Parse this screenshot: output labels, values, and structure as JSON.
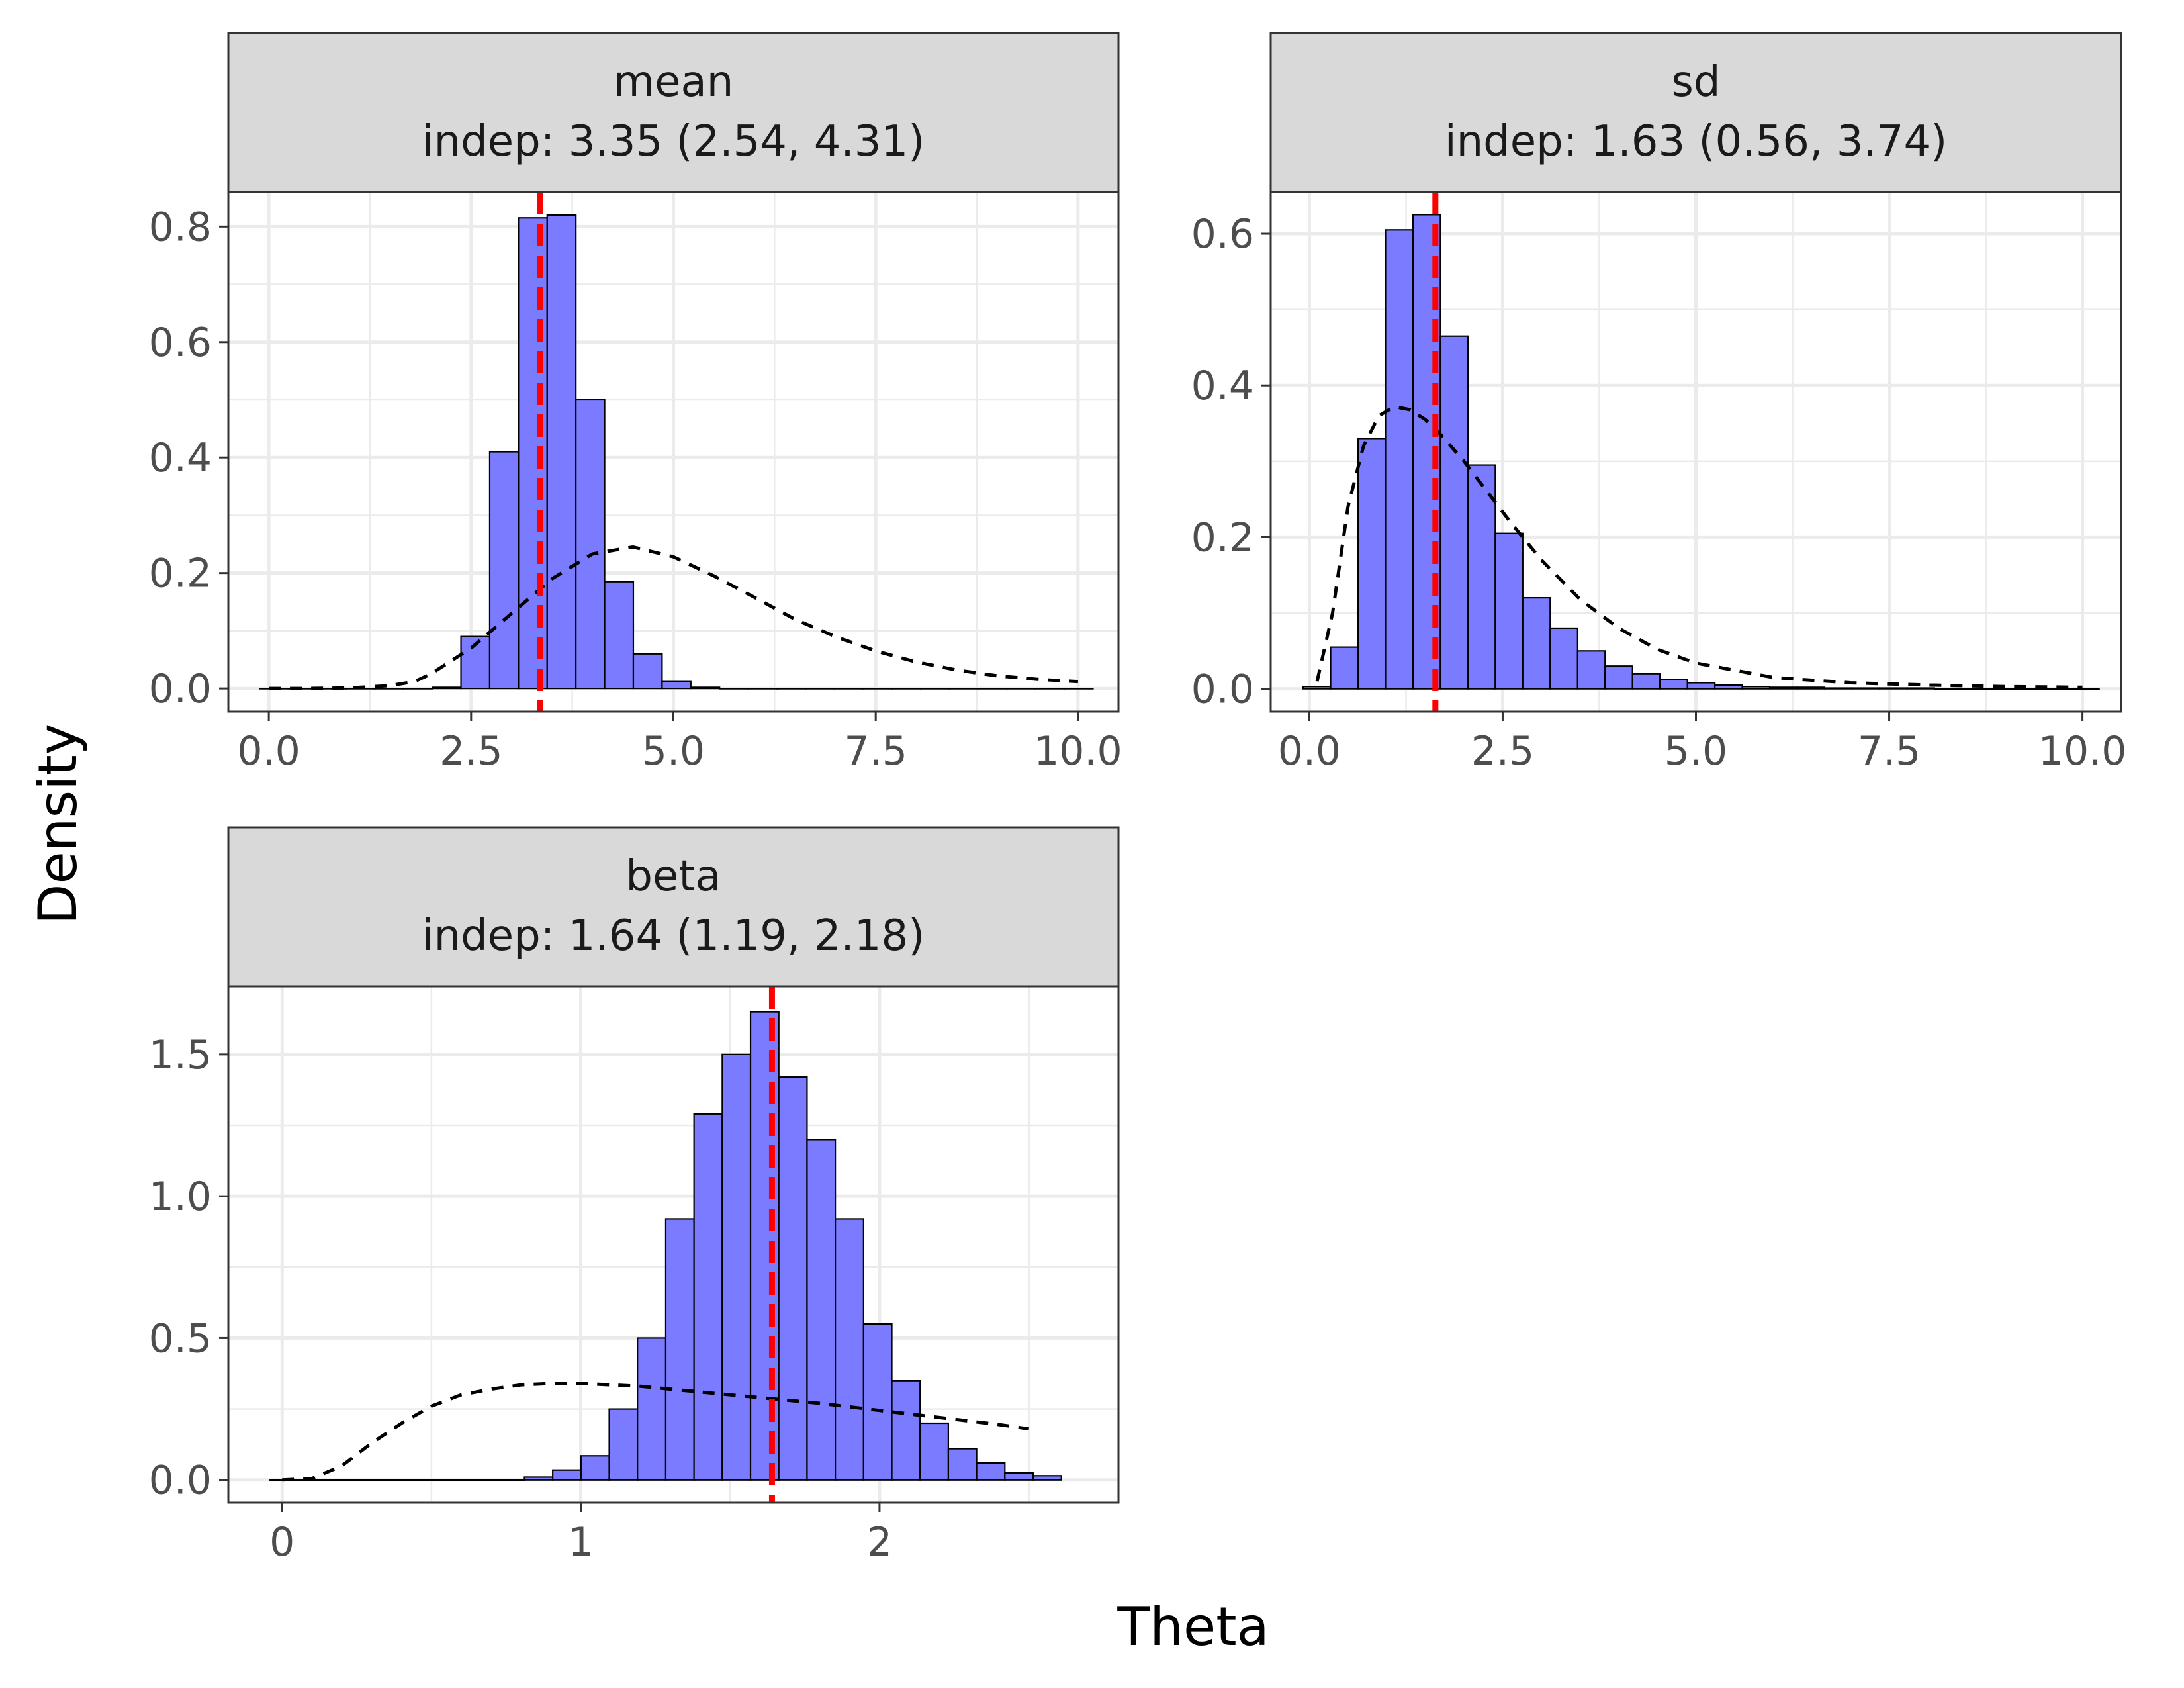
{
  "figure": {
    "xlabel": "Theta",
    "ylabel": "Density"
  },
  "style": {
    "bar_fill": "#7B7BFF",
    "bar_stroke": "#000000",
    "vline_color": "#FF0000",
    "strip_fill": "#D9D9D9",
    "grid_color": "#EBEBEB",
    "panel_border": "#333333",
    "tick_text_color": "#4D4D4D"
  },
  "chart_data": [
    {
      "type": "bar",
      "panel": "mean",
      "strip_title": "mean",
      "strip_subtitle": "indep: 3.35 (2.54, 4.31)",
      "xlim": [
        -0.5,
        10.5
      ],
      "ylim": [
        -0.04,
        0.86
      ],
      "x_ticks": [
        0,
        2.5,
        5,
        7.5,
        10
      ],
      "x_tick_labels": [
        "0.0",
        "2.5",
        "5.0",
        "7.5",
        "10.0"
      ],
      "y_ticks": [
        0,
        0.2,
        0.4,
        0.6,
        0.8
      ],
      "y_tick_labels": [
        "0.0",
        "0.2",
        "0.4",
        "0.6",
        "0.8"
      ],
      "grid": true,
      "bin_width": 0.355,
      "bin_left_edges": [
        -0.11,
        0.245,
        0.6,
        0.955,
        1.31,
        1.665,
        2.02,
        2.375,
        2.73,
        3.085,
        3.44,
        3.795,
        4.15,
        4.505,
        4.86,
        5.215,
        5.57,
        5.925,
        6.28,
        6.635,
        6.99,
        7.345,
        7.7,
        8.055,
        8.41,
        8.765,
        9.12,
        9.475,
        9.83
      ],
      "histogram_density": [
        0,
        0,
        0,
        0,
        0,
        0,
        0.002,
        0.09,
        0.41,
        0.815,
        0.82,
        0.5,
        0.185,
        0.06,
        0.012,
        0.002,
        0,
        0,
        0,
        0,
        0,
        0,
        0,
        0,
        0,
        0,
        0,
        0,
        0
      ],
      "prior_density": {
        "x": [
          0,
          0.5,
          1,
          1.5,
          1.8,
          2,
          2.5,
          3,
          3.5,
          4,
          4.5,
          5,
          5.5,
          6,
          6.5,
          7,
          7.5,
          8,
          8.5,
          9,
          9.5,
          10
        ],
        "y": [
          0,
          0,
          0.001,
          0.005,
          0.012,
          0.025,
          0.07,
          0.13,
          0.19,
          0.233,
          0.245,
          0.228,
          0.195,
          0.158,
          0.12,
          0.09,
          0.065,
          0.046,
          0.032,
          0.022,
          0.016,
          0.012
        ]
      },
      "vline_x": 3.35
    },
    {
      "type": "bar",
      "panel": "sd",
      "strip_title": "sd",
      "strip_subtitle": "indep: 1.63 (0.56, 3.74)",
      "xlim": [
        -0.5,
        10.5
      ],
      "ylim": [
        -0.03,
        0.655
      ],
      "x_ticks": [
        0,
        2.5,
        5,
        7.5,
        10
      ],
      "x_tick_labels": [
        "0.0",
        "2.5",
        "5.0",
        "7.5",
        "10.0"
      ],
      "y_ticks": [
        0,
        0.2,
        0.4,
        0.6
      ],
      "y_tick_labels": [
        "0.0",
        "0.2",
        "0.4",
        "0.6"
      ],
      "grid": true,
      "bin_width": 0.355,
      "bin_left_edges": [
        -0.08,
        0.275,
        0.63,
        0.985,
        1.34,
        1.695,
        2.05,
        2.405,
        2.76,
        3.115,
        3.47,
        3.825,
        4.18,
        4.535,
        4.89,
        5.245,
        5.6,
        5.955,
        6.31,
        6.665,
        7.02,
        7.375,
        7.73,
        8.085,
        8.44,
        8.795,
        9.15,
        9.505,
        9.86
      ],
      "histogram_density": [
        0.003,
        0.055,
        0.33,
        0.605,
        0.625,
        0.465,
        0.295,
        0.205,
        0.12,
        0.08,
        0.05,
        0.03,
        0.02,
        0.012,
        0.008,
        0.005,
        0.003,
        0.002,
        0.002,
        0.001,
        0.001,
        0.001,
        0.001,
        0,
        0,
        0,
        0,
        0,
        0
      ],
      "prior_density": {
        "x": [
          0.1,
          0.3,
          0.5,
          0.7,
          0.9,
          1.1,
          1.3,
          1.5,
          1.7,
          2,
          2.3,
          2.6,
          3,
          3.5,
          4,
          4.5,
          5,
          6,
          7,
          8,
          9,
          10
        ],
        "y": [
          0.01,
          0.1,
          0.24,
          0.32,
          0.36,
          0.372,
          0.368,
          0.355,
          0.335,
          0.3,
          0.26,
          0.22,
          0.17,
          0.118,
          0.08,
          0.052,
          0.034,
          0.015,
          0.008,
          0.005,
          0.003,
          0.002
        ]
      },
      "vline_x": 1.63
    },
    {
      "type": "bar",
      "panel": "beta",
      "strip_title": "beta",
      "strip_subtitle": "indep: 1.64 (1.19, 2.18)",
      "xlim": [
        -0.18,
        2.8
      ],
      "ylim": [
        -0.08,
        1.74
      ],
      "x_ticks": [
        0,
        1,
        2
      ],
      "x_tick_labels": [
        "0",
        "1",
        "2"
      ],
      "y_ticks": [
        0,
        0.5,
        1,
        1.5
      ],
      "y_tick_labels": [
        "0.0",
        "0.5",
        "1.0",
        "1.5"
      ],
      "grid": true,
      "bin_width": 0.0946,
      "bin_left_edges": [
        -0.04,
        0.0546,
        0.1492,
        0.2438,
        0.3384,
        0.433,
        0.5276,
        0.6222,
        0.7168,
        0.8114,
        0.906,
        1.0006,
        1.0952,
        1.1898,
        1.2844,
        1.379,
        1.4736,
        1.5682,
        1.6628,
        1.7574,
        1.852,
        1.9466,
        2.0412,
        2.1358,
        2.2304,
        2.325,
        2.4196,
        2.5142
      ],
      "histogram_density": [
        0,
        0,
        0,
        0,
        0,
        0,
        0,
        0,
        0,
        0.01,
        0.035,
        0.085,
        0.25,
        0.5,
        0.92,
        1.29,
        1.5,
        1.65,
        1.42,
        1.2,
        0.92,
        0.55,
        0.35,
        0.2,
        0.11,
        0.06,
        0.025,
        0.015
      ],
      "prior_density": {
        "x": [
          0,
          0.1,
          0.2,
          0.3,
          0.4,
          0.5,
          0.6,
          0.7,
          0.8,
          0.9,
          1,
          1.1,
          1.2,
          1.4,
          1.6,
          1.8,
          2,
          2.2,
          2.4,
          2.5
        ],
        "y": [
          0,
          0.005,
          0.05,
          0.13,
          0.2,
          0.26,
          0.3,
          0.32,
          0.335,
          0.34,
          0.34,
          0.335,
          0.33,
          0.31,
          0.29,
          0.27,
          0.245,
          0.22,
          0.195,
          0.18
        ]
      },
      "vline_x": 1.64
    }
  ]
}
